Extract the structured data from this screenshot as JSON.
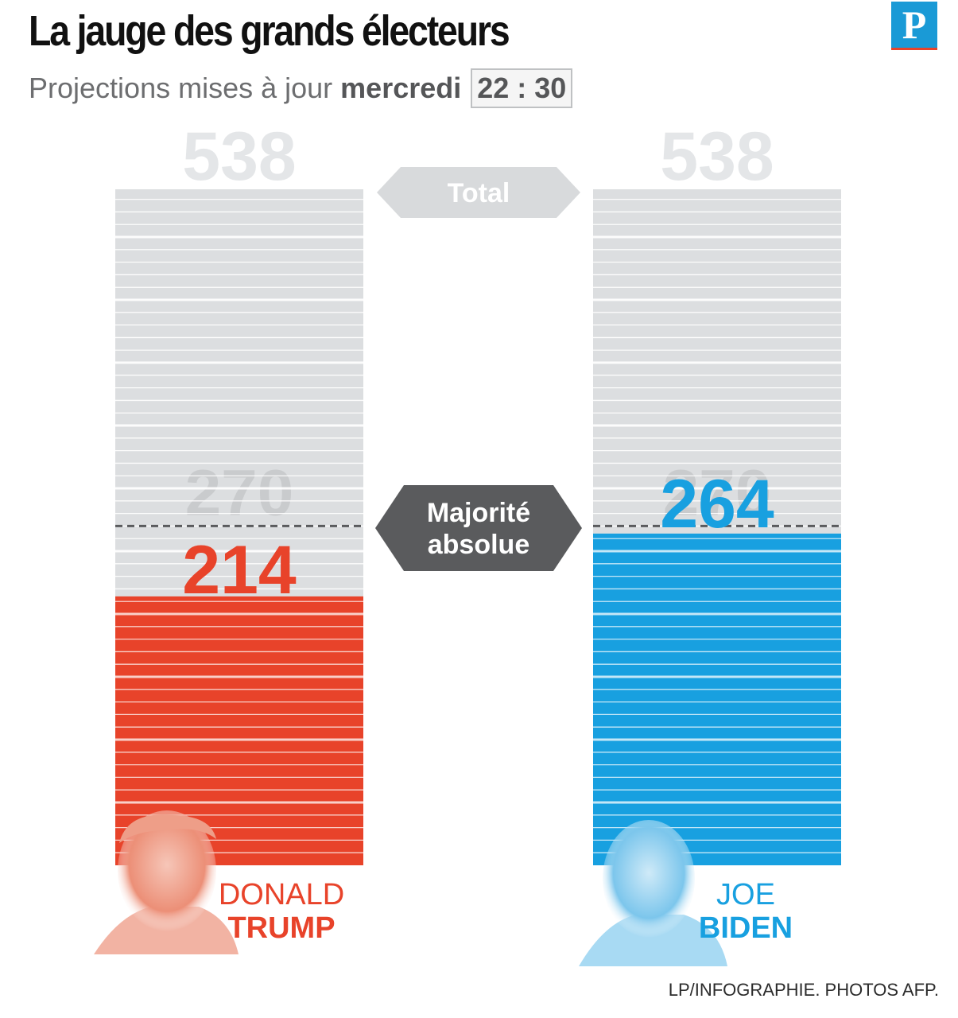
{
  "header": {
    "title": "La jauge des grands électeurs",
    "subtitle_prefix": "Projections mises à jour",
    "subtitle_day": "mercredi",
    "subtitle_time": "22 : 30",
    "logo_letter": "P"
  },
  "colors": {
    "trump": "#e8432a",
    "biden": "#18a0e0",
    "empty": "#dcdee0",
    "label_grey": "#e4e6e8",
    "arrow_total": "#d8dadc",
    "arrow_majority": "#5a5b5d"
  },
  "chart_data": {
    "type": "bar",
    "title": "La jauge des grands électeurs",
    "total": 538,
    "total_label": "538",
    "majority": 270,
    "majority_label": "270",
    "ylim": [
      0,
      538
    ],
    "total_arrow_label": "Total",
    "majority_arrow_label": [
      "Majorité",
      "absolue"
    ],
    "series": [
      {
        "name": "Donald Trump",
        "first": "DONALD",
        "last": "TRUMP",
        "value": 214,
        "value_label": "214",
        "color": "#e8432a"
      },
      {
        "name": "Joe Biden",
        "first": "JOE",
        "last": "BIDEN",
        "value": 264,
        "value_label": "264",
        "color": "#18a0e0"
      }
    ]
  },
  "credit": "LP/INFOGRAPHIE. PHOTOS AFP."
}
